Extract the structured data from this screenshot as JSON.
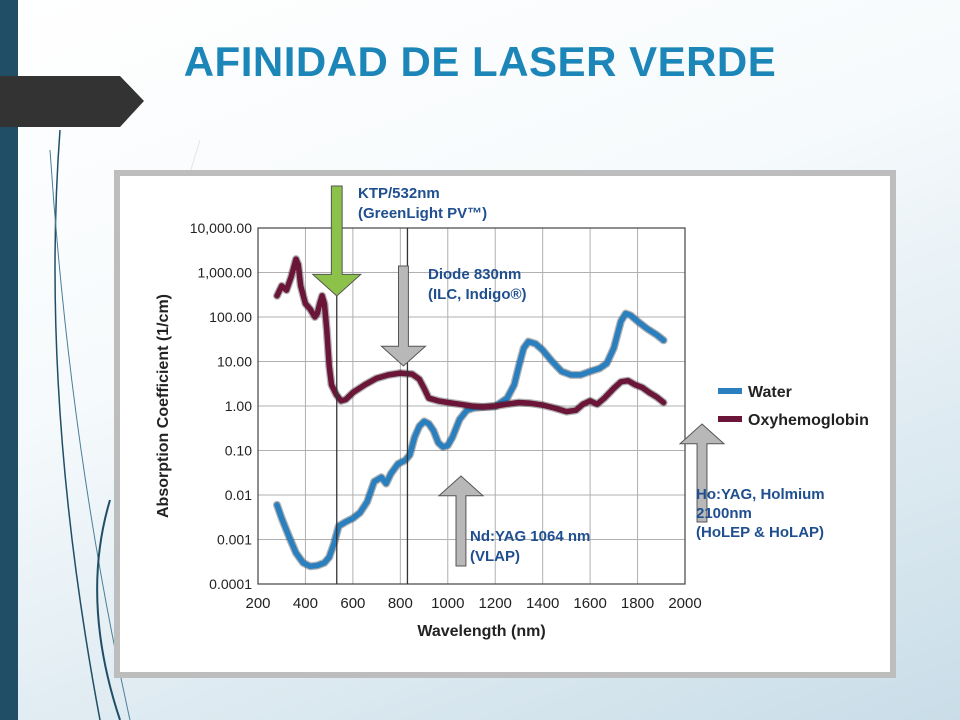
{
  "slide": {
    "title": "AFINIDAD DE LASER VERDE"
  },
  "colors": {
    "title": "#1d86b8",
    "water": "#2a7fbf",
    "oxyhemoglobin": "#6b1638",
    "ktp_arrow": "#8dc24a",
    "gray_arrow": "#b8b8b8",
    "label_blue": "#1f4f8f"
  },
  "chart_data": {
    "type": "line",
    "xlabel": "Wavelength (nm)",
    "ylabel": "Absorption Coefficient (1/cm)",
    "y_scale": "log",
    "xlim": [
      200,
      2000
    ],
    "ylim": [
      0.0001,
      10000
    ],
    "x_ticks": [
      200,
      400,
      600,
      800,
      1000,
      1200,
      1400,
      1600,
      1800,
      2000
    ],
    "x_tick_labels": [
      "200",
      "400",
      "600",
      "800",
      "1000",
      "1200",
      "1400",
      "1600",
      "1800",
      "2000"
    ],
    "y_ticks": [
      0.0001,
      0.001,
      0.01,
      0.1,
      1,
      10,
      100,
      1000,
      10000
    ],
    "y_tick_labels": [
      "0.0001",
      "0.001",
      "0.01",
      "0.10",
      "1.00",
      "10.00",
      "100.00",
      "1,000.00",
      "10,000.00"
    ],
    "grid": true,
    "legend_position": "right",
    "series": [
      {
        "name": "Water",
        "color_key": "water",
        "points": [
          [
            280,
            0.006
          ],
          [
            300,
            0.003
          ],
          [
            330,
            0.0012
          ],
          [
            360,
            0.0005
          ],
          [
            390,
            0.0003
          ],
          [
            420,
            0.00025
          ],
          [
            450,
            0.00026
          ],
          [
            480,
            0.0003
          ],
          [
            500,
            0.0004
          ],
          [
            520,
            0.0008
          ],
          [
            540,
            0.002
          ],
          [
            570,
            0.0025
          ],
          [
            600,
            0.003
          ],
          [
            630,
            0.004
          ],
          [
            660,
            0.007
          ],
          [
            690,
            0.02
          ],
          [
            720,
            0.025
          ],
          [
            740,
            0.018
          ],
          [
            760,
            0.03
          ],
          [
            790,
            0.05
          ],
          [
            820,
            0.06
          ],
          [
            840,
            0.08
          ],
          [
            860,
            0.2
          ],
          [
            880,
            0.35
          ],
          [
            900,
            0.45
          ],
          [
            920,
            0.4
          ],
          [
            940,
            0.28
          ],
          [
            960,
            0.15
          ],
          [
            980,
            0.12
          ],
          [
            1000,
            0.13
          ],
          [
            1020,
            0.2
          ],
          [
            1050,
            0.5
          ],
          [
            1080,
            0.8
          ],
          [
            1110,
            0.9
          ],
          [
            1150,
            0.95
          ],
          [
            1200,
            0.98
          ],
          [
            1250,
            1.5
          ],
          [
            1280,
            3
          ],
          [
            1300,
            8
          ],
          [
            1320,
            20
          ],
          [
            1340,
            28
          ],
          [
            1370,
            25
          ],
          [
            1400,
            18
          ],
          [
            1440,
            10
          ],
          [
            1480,
            6
          ],
          [
            1520,
            5
          ],
          [
            1560,
            5
          ],
          [
            1600,
            6
          ],
          [
            1640,
            7
          ],
          [
            1670,
            9
          ],
          [
            1700,
            20
          ],
          [
            1730,
            80
          ],
          [
            1750,
            120
          ],
          [
            1770,
            110
          ],
          [
            1800,
            80
          ],
          [
            1840,
            55
          ],
          [
            1880,
            40
          ],
          [
            1910,
            30
          ]
        ]
      },
      {
        "name": "Oxyhemoglobin",
        "color_key": "oxyhemoglobin",
        "points": [
          [
            280,
            300
          ],
          [
            300,
            500
          ],
          [
            320,
            400
          ],
          [
            340,
            800
          ],
          [
            360,
            2000
          ],
          [
            370,
            1500
          ],
          [
            380,
            500
          ],
          [
            400,
            200
          ],
          [
            420,
            150
          ],
          [
            440,
            100
          ],
          [
            450,
            120
          ],
          [
            460,
            200
          ],
          [
            470,
            300
          ],
          [
            480,
            200
          ],
          [
            490,
            50
          ],
          [
            500,
            8
          ],
          [
            510,
            3
          ],
          [
            530,
            1.8
          ],
          [
            550,
            1.3
          ],
          [
            570,
            1.4
          ],
          [
            600,
            2
          ],
          [
            650,
            3
          ],
          [
            700,
            4.2
          ],
          [
            750,
            5
          ],
          [
            800,
            5.5
          ],
          [
            850,
            5.2
          ],
          [
            880,
            4
          ],
          [
            900,
            2.5
          ],
          [
            920,
            1.5
          ],
          [
            960,
            1.3
          ],
          [
            1000,
            1.2
          ],
          [
            1050,
            1.1
          ],
          [
            1100,
            1.0
          ],
          [
            1150,
            0.95
          ],
          [
            1200,
            1.0
          ],
          [
            1250,
            1.1
          ],
          [
            1300,
            1.2
          ],
          [
            1350,
            1.15
          ],
          [
            1400,
            1.05
          ],
          [
            1450,
            0.9
          ],
          [
            1500,
            0.75
          ],
          [
            1540,
            0.8
          ],
          [
            1570,
            1.1
          ],
          [
            1600,
            1.3
          ],
          [
            1630,
            1.1
          ],
          [
            1660,
            1.5
          ],
          [
            1700,
            2.5
          ],
          [
            1730,
            3.5
          ],
          [
            1760,
            3.7
          ],
          [
            1790,
            3
          ],
          [
            1820,
            2.6
          ],
          [
            1850,
            2
          ],
          [
            1880,
            1.6
          ],
          [
            1910,
            1.2
          ]
        ]
      }
    ],
    "annotations": [
      {
        "id": "ktp",
        "lines": [
          "KTP/532nm",
          "(GreenLight PV™)"
        ],
        "x": 532,
        "arrow": "down"
      },
      {
        "id": "diode",
        "lines": [
          "Diode 830nm",
          "(ILC, Indigo®)"
        ],
        "x": 830,
        "arrow": "down"
      },
      {
        "id": "ndyag",
        "lines": [
          "Nd:YAG 1064 nm",
          "(VLAP)"
        ],
        "x": 1064,
        "arrow": "up"
      },
      {
        "id": "hoyag",
        "lines": [
          "Ho:YAG, Holmium",
          "2100nm",
          "(HoLEP & HoLAP)"
        ],
        "x": 2100,
        "arrow": "up"
      }
    ]
  }
}
